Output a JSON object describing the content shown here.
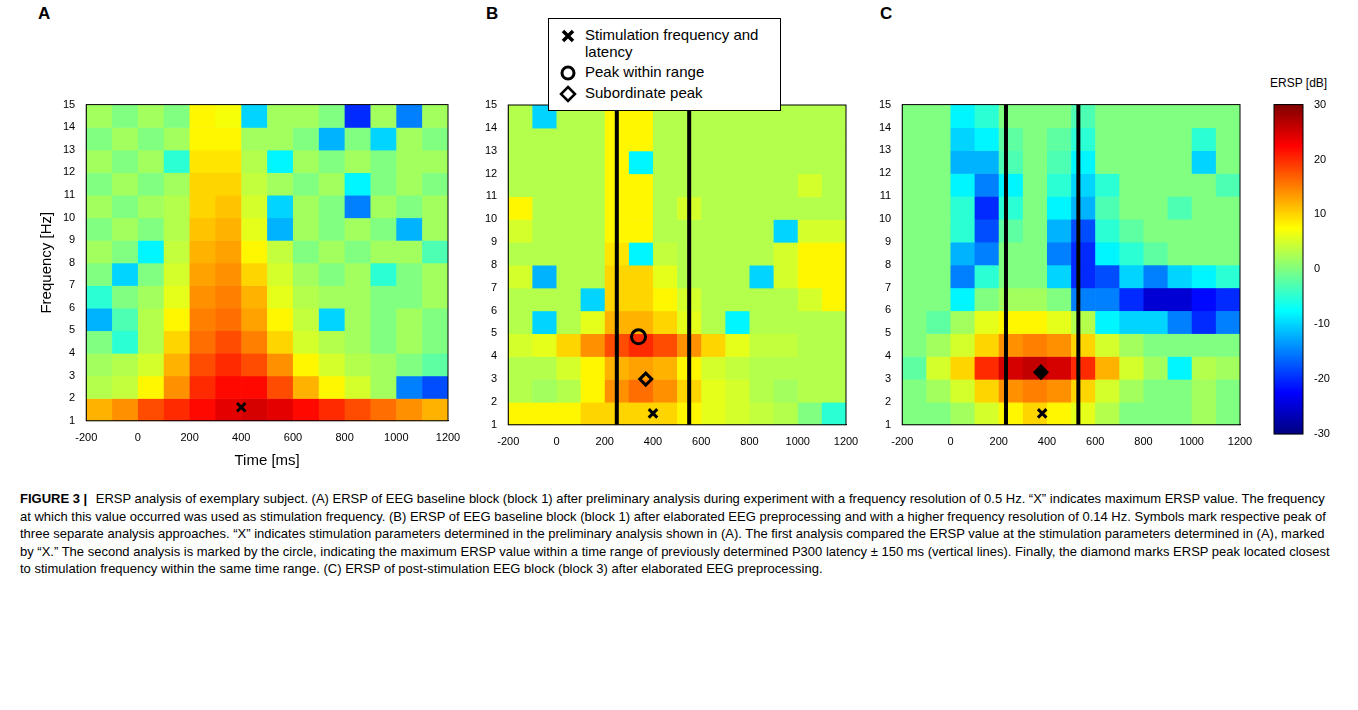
{
  "chart_data": [
    {
      "type": "heatmap",
      "panel": "A",
      "x_label": "Time [ms]",
      "y_label": "Frequency [Hz]",
      "xlim": [
        -200,
        1200
      ],
      "ylim": [
        1,
        15
      ],
      "xticks": [
        -200,
        0,
        200,
        400,
        600,
        800,
        1000,
        1200
      ],
      "yticks": [
        1,
        2,
        3,
        4,
        5,
        6,
        7,
        8,
        9,
        10,
        11,
        12,
        13,
        14,
        15
      ],
      "grid": false,
      "x_edges": [
        -200,
        -100,
        0,
        100,
        200,
        300,
        400,
        500,
        600,
        700,
        800,
        900,
        1000,
        1100,
        1200
      ],
      "y_edges": [
        1,
        2,
        3,
        4,
        5,
        6,
        7,
        8,
        9,
        10,
        11,
        12,
        13,
        14,
        15
      ],
      "z": [
        [
          12,
          14,
          18,
          20,
          22,
          24,
          25,
          24,
          22,
          20,
          18,
          16,
          14,
          12
        ],
        [
          3,
          4,
          8,
          14,
          20,
          22,
          22,
          18,
          12,
          8,
          5,
          2,
          -15,
          -18
        ],
        [
          2,
          3,
          5,
          12,
          18,
          20,
          18,
          14,
          8,
          5,
          3,
          2,
          0,
          -2
        ],
        [
          0,
          -5,
          3,
          10,
          16,
          18,
          15,
          10,
          5,
          3,
          2,
          0,
          2,
          0
        ],
        [
          -12,
          -3,
          3,
          8,
          15,
          16,
          13,
          8,
          4,
          -10,
          2,
          0,
          2,
          0
        ],
        [
          -5,
          0,
          2,
          6,
          14,
          15,
          12,
          6,
          3,
          2,
          2,
          0,
          0,
          2
        ],
        [
          0,
          -10,
          0,
          5,
          13,
          14,
          10,
          5,
          2,
          0,
          2,
          -5,
          0,
          2
        ],
        [
          2,
          0,
          -8,
          4,
          12,
          13,
          8,
          4,
          0,
          2,
          0,
          2,
          2,
          -3
        ],
        [
          0,
          2,
          0,
          3,
          11,
          12,
          6,
          -12,
          2,
          0,
          2,
          0,
          -12,
          2
        ],
        [
          2,
          0,
          2,
          3,
          10,
          11,
          5,
          -10,
          2,
          0,
          -15,
          2,
          0,
          2
        ],
        [
          0,
          2,
          0,
          2,
          10,
          10,
          4,
          2,
          0,
          2,
          -8,
          0,
          2,
          0
        ],
        [
          2,
          0,
          2,
          -5,
          9,
          9,
          3,
          -8,
          2,
          0,
          2,
          0,
          2,
          2
        ],
        [
          0,
          2,
          0,
          2,
          8,
          8,
          2,
          2,
          0,
          -12,
          0,
          -10,
          2,
          0
        ],
        [
          2,
          0,
          2,
          0,
          8,
          7,
          -10,
          2,
          2,
          0,
          -20,
          2,
          -15,
          2
        ]
      ],
      "markers": [
        {
          "marker": "x",
          "x": 400,
          "y": 1.6
        }
      ],
      "vlines": []
    },
    {
      "type": "heatmap",
      "panel": "B",
      "xlim": [
        -200,
        1200
      ],
      "ylim": [
        1,
        15
      ],
      "xticks": [
        -200,
        0,
        200,
        400,
        600,
        800,
        1000,
        1200
      ],
      "yticks": [
        1,
        2,
        3,
        4,
        5,
        6,
        7,
        8,
        9,
        10,
        11,
        12,
        13,
        14,
        15
      ],
      "grid": false,
      "legend": "top",
      "x_edges": [
        -200,
        -100,
        0,
        100,
        200,
        300,
        400,
        500,
        600,
        700,
        800,
        900,
        1000,
        1100,
        1200
      ],
      "y_edges": [
        1,
        2,
        3,
        4,
        5,
        6,
        7,
        8,
        9,
        10,
        11,
        12,
        13,
        14,
        15
      ],
      "z": [
        [
          8,
          8,
          8,
          10,
          10,
          10,
          10,
          8,
          6,
          5,
          4,
          3,
          0,
          -5
        ],
        [
          3,
          2,
          3,
          8,
          14,
          16,
          14,
          10,
          6,
          5,
          3,
          2,
          3,
          3
        ],
        [
          3,
          3,
          5,
          8,
          12,
          13,
          12,
          8,
          5,
          4,
          3,
          3,
          3,
          3
        ],
        [
          5,
          6,
          10,
          14,
          18,
          20,
          18,
          14,
          10,
          6,
          4,
          4,
          3,
          3
        ],
        [
          3,
          -10,
          3,
          6,
          12,
          12,
          10,
          6,
          3,
          -8,
          3,
          3,
          3,
          3
        ],
        [
          3,
          3,
          3,
          -10,
          10,
          10,
          8,
          5,
          3,
          3,
          3,
          3,
          5,
          8
        ],
        [
          5,
          -12,
          3,
          3,
          10,
          10,
          6,
          3,
          3,
          3,
          -10,
          5,
          8,
          8
        ],
        [
          3,
          3,
          3,
          3,
          9,
          -8,
          4,
          3,
          3,
          3,
          3,
          5,
          8,
          8
        ],
        [
          5,
          3,
          3,
          3,
          8,
          8,
          3,
          3,
          3,
          3,
          3,
          -10,
          5,
          5
        ],
        [
          8,
          3,
          3,
          3,
          8,
          8,
          3,
          5,
          3,
          3,
          3,
          3,
          3,
          3
        ],
        [
          3,
          3,
          3,
          3,
          8,
          8,
          3,
          3,
          3,
          3,
          3,
          3,
          5,
          3
        ],
        [
          3,
          3,
          3,
          3,
          8,
          -8,
          3,
          3,
          3,
          3,
          3,
          3,
          3,
          3
        ],
        [
          3,
          3,
          3,
          3,
          8,
          8,
          3,
          3,
          3,
          3,
          3,
          3,
          3,
          3
        ],
        [
          3,
          -10,
          3,
          3,
          8,
          8,
          3,
          3,
          3,
          3,
          3,
          3,
          3,
          3
        ]
      ],
      "markers": [
        {
          "name": "Stimulation frequency and latency",
          "marker": "x",
          "x": 400,
          "y": 1.5
        },
        {
          "name": "Peak within range",
          "marker": "circle",
          "x": 340,
          "y": 4.85
        },
        {
          "name": "Subordinate peak",
          "marker": "diamond",
          "x": 370,
          "y": 3.0
        }
      ],
      "vlines": [
        250,
        550
      ]
    },
    {
      "type": "heatmap",
      "panel": "C",
      "xlim": [
        -200,
        1200
      ],
      "ylim": [
        1,
        15
      ],
      "xticks": [
        -200,
        0,
        200,
        400,
        600,
        800,
        1000,
        1200
      ],
      "yticks": [
        1,
        2,
        3,
        4,
        5,
        6,
        7,
        8,
        9,
        10,
        11,
        12,
        13,
        14,
        15
      ],
      "grid": false,
      "x_edges": [
        -200,
        -100,
        0,
        100,
        200,
        300,
        400,
        500,
        600,
        700,
        800,
        900,
        1000,
        1100,
        1200
      ],
      "y_edges": [
        1,
        2,
        3,
        4,
        5,
        6,
        7,
        8,
        9,
        10,
        11,
        12,
        13,
        14,
        15
      ],
      "z": [
        [
          0,
          0,
          2,
          5,
          8,
          10,
          8,
          6,
          3,
          0,
          0,
          0,
          2,
          0
        ],
        [
          0,
          2,
          5,
          10,
          14,
          15,
          14,
          10,
          5,
          2,
          0,
          0,
          2,
          0
        ],
        [
          -2,
          5,
          10,
          20,
          25,
          26,
          25,
          20,
          12,
          5,
          2,
          -8,
          3,
          2
        ],
        [
          0,
          2,
          5,
          10,
          14,
          15,
          14,
          10,
          5,
          2,
          0,
          0,
          0,
          0
        ],
        [
          0,
          -2,
          2,
          6,
          8,
          8,
          6,
          3,
          -8,
          -10,
          -10,
          -15,
          -20,
          -15
        ],
        [
          0,
          0,
          -8,
          0,
          2,
          2,
          0,
          -15,
          -15,
          -20,
          -25,
          -25,
          -22,
          -20
        ],
        [
          0,
          0,
          -15,
          -5,
          0,
          0,
          -10,
          -20,
          -18,
          -10,
          -15,
          -10,
          -8,
          -5
        ],
        [
          0,
          0,
          -12,
          -15,
          0,
          0,
          -15,
          -20,
          -8,
          -5,
          -2,
          0,
          0,
          0
        ],
        [
          0,
          0,
          -5,
          -18,
          -2,
          0,
          -12,
          -18,
          -5,
          -2,
          0,
          0,
          0,
          0
        ],
        [
          0,
          0,
          -5,
          -20,
          -5,
          0,
          -8,
          -12,
          -3,
          0,
          0,
          -3,
          0,
          0
        ],
        [
          0,
          0,
          -8,
          -15,
          -8,
          0,
          -5,
          -10,
          -5,
          0,
          0,
          0,
          0,
          -3
        ],
        [
          0,
          0,
          -12,
          -12,
          -3,
          0,
          -3,
          -8,
          0,
          0,
          0,
          0,
          -10,
          0
        ],
        [
          0,
          0,
          -10,
          -8,
          -2,
          0,
          -2,
          -5,
          0,
          0,
          0,
          0,
          -5,
          0
        ],
        [
          0,
          0,
          -8,
          -5,
          0,
          0,
          0,
          -3,
          0,
          0,
          0,
          0,
          0,
          0
        ]
      ],
      "markers": [
        {
          "marker": "x",
          "x": 380,
          "y": 1.5
        },
        {
          "marker": "filled_diamond",
          "x": 375,
          "y": 3.3
        }
      ],
      "vlines": [
        230,
        530
      ]
    }
  ],
  "colorbar": {
    "title": "ERSP [dB]",
    "range": [
      -30,
      30
    ],
    "ticks": [
      -30,
      -20,
      -10,
      0,
      10,
      20,
      30
    ]
  },
  "caption": {
    "label": "FIGURE 3 |",
    "text": "ERSP analysis of exemplary subject. (A) ERSP of EEG baseline block (block 1) after preliminary analysis during experiment with a frequency resolution of 0.5 Hz. “X” indicates maximum ERSP value. The frequency at which this value occurred was used as stimulation frequency. (B) ERSP of EEG baseline block (block 1) after elaborated EEG preprocessing and with a higher frequency resolution of 0.14 Hz. Symbols mark respective peak of three separate analysis approaches. “X” indicates stimulation parameters determined in the preliminary analysis shown in (A). The first analysis compared the ERSP value at the stimulation parameters determined in (A), marked by “X.” The second analysis is marked by the circle, indicating the maximum ERSP value within a time range of previously determined P300 latency ± 150 ms (vertical lines). Finally, the diamond marks ERSP peak located closest to stimulation frequency within the same time range. (C) ERSP of post-stimulation EEG block (block 3) after elaborated EEG preprocessing."
  }
}
